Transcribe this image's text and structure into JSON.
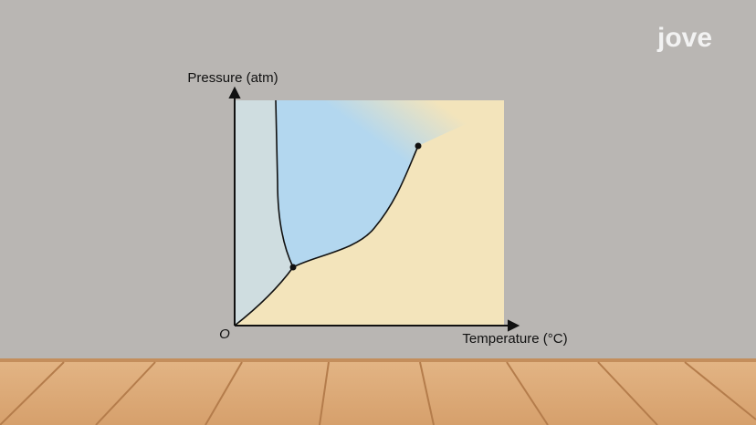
{
  "logo": "jove",
  "diagram": {
    "y_axis_label": "Pressure (atm)",
    "x_axis_label": "Temperature (°C)",
    "origin_label": "O"
  }
}
